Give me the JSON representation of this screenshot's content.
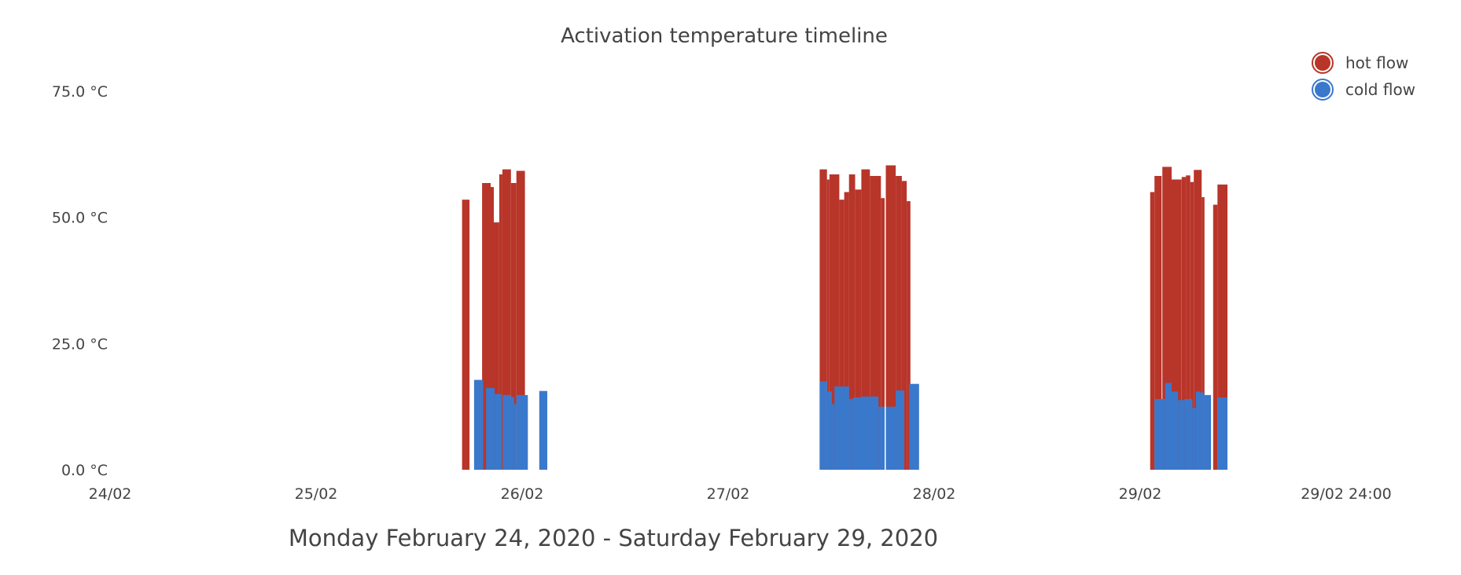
{
  "chart_data": {
    "type": "bar",
    "title": "Activation temperature timeline",
    "xlabel": "Monday February 24, 2020 - Saturday February 29, 2020",
    "ylabel": "",
    "ylim": [
      0,
      75
    ],
    "xlim": [
      "2020-02-24",
      "2020-03-01"
    ],
    "y_ticks": [
      "0.0 °C",
      "25.0 °C",
      "50.0 °C",
      "75.0 °C"
    ],
    "y_tick_values": [
      0,
      25,
      50,
      75
    ],
    "x_ticks": [
      "24/02",
      "25/02",
      "26/02",
      "27/02",
      "28/02",
      "29/02",
      "29/02 24:00"
    ],
    "x_tick_values": [
      "2020-02-24 00:00",
      "2020-02-25 00:00",
      "2020-02-26 00:00",
      "2020-02-27 00:00",
      "2020-02-28 00:00",
      "2020-02-29 00:00",
      "2020-03-01 00:00"
    ],
    "grid": false,
    "legend": "top-right",
    "series": [
      {
        "name": "hot flow",
        "color": "#b8352a",
        "bars": [
          {
            "start": "2020-02-25 17:00",
            "end": "2020-02-25 17:52",
            "value": 53.5
          },
          {
            "start": "2020-02-25 19:20",
            "end": "2020-02-25 20:20",
            "value": 56.8
          },
          {
            "start": "2020-02-25 20:20",
            "end": "2020-02-25 20:42",
            "value": 56.0
          },
          {
            "start": "2020-02-25 20:42",
            "end": "2020-02-25 21:20",
            "value": 49.0
          },
          {
            "start": "2020-02-25 21:20",
            "end": "2020-02-25 21:42",
            "value": 58.5
          },
          {
            "start": "2020-02-25 21:42",
            "end": "2020-02-25 22:42",
            "value": 59.5
          },
          {
            "start": "2020-02-25 22:42",
            "end": "2020-02-25 23:20",
            "value": 56.8
          },
          {
            "start": "2020-02-25 23:20",
            "end": "2020-02-26 00:20",
            "value": 59.2
          },
          {
            "start": "2020-02-27 10:40",
            "end": "2020-02-27 11:31",
            "value": 59.5
          },
          {
            "start": "2020-02-27 11:31",
            "end": "2020-02-27 11:48",
            "value": 57.5
          },
          {
            "start": "2020-02-27 11:48",
            "end": "2020-02-27 12:57",
            "value": 58.5
          },
          {
            "start": "2020-02-27 12:57",
            "end": "2020-02-27 13:31",
            "value": 53.5
          },
          {
            "start": "2020-02-27 13:31",
            "end": "2020-02-27 14:05",
            "value": 55.0
          },
          {
            "start": "2020-02-27 14:05",
            "end": "2020-02-27 14:48",
            "value": 58.5
          },
          {
            "start": "2020-02-27 14:48",
            "end": "2020-02-27 15:31",
            "value": 55.5
          },
          {
            "start": "2020-02-27 15:31",
            "end": "2020-02-27 16:31",
            "value": 59.5
          },
          {
            "start": "2020-02-27 16:31",
            "end": "2020-02-27 17:48",
            "value": 58.2
          },
          {
            "start": "2020-02-27 17:48",
            "end": "2020-02-27 18:14",
            "value": 53.8
          },
          {
            "start": "2020-02-27 18:22",
            "end": "2020-02-27 19:31",
            "value": 60.3
          },
          {
            "start": "2020-02-27 19:31",
            "end": "2020-02-27 20:14",
            "value": 58.2
          },
          {
            "start": "2020-02-27 20:14",
            "end": "2020-02-27 20:48",
            "value": 57.2
          },
          {
            "start": "2020-02-27 20:48",
            "end": "2020-02-27 21:14",
            "value": 53.2
          },
          {
            "start": "2020-02-29 01:10",
            "end": "2020-02-29 01:40",
            "value": 55.0
          },
          {
            "start": "2020-02-29 01:40",
            "end": "2020-02-29 02:30",
            "value": 58.2
          },
          {
            "start": "2020-02-29 02:35",
            "end": "2020-02-29 03:40",
            "value": 60.0
          },
          {
            "start": "2020-02-29 03:40",
            "end": "2020-02-29 04:50",
            "value": 57.5
          },
          {
            "start": "2020-02-29 04:50",
            "end": "2020-02-29 05:20",
            "value": 58.0
          },
          {
            "start": "2020-02-29 05:20",
            "end": "2020-02-29 05:50",
            "value": 58.3
          },
          {
            "start": "2020-02-29 05:50",
            "end": "2020-02-29 06:15",
            "value": 57.0
          },
          {
            "start": "2020-02-29 06:15",
            "end": "2020-02-29 07:10",
            "value": 59.4
          },
          {
            "start": "2020-02-29 07:10",
            "end": "2020-02-29 07:30",
            "value": 54.0
          },
          {
            "start": "2020-02-29 08:30",
            "end": "2020-02-29 09:00",
            "value": 52.5
          },
          {
            "start": "2020-02-29 09:00",
            "end": "2020-02-29 10:10",
            "value": 56.5
          }
        ]
      },
      {
        "name": "cold flow",
        "color": "#3a78cc",
        "bars": [
          {
            "start": "2020-02-25 18:24",
            "end": "2020-02-25 19:28",
            "value": 17.8
          },
          {
            "start": "2020-02-25 19:48",
            "end": "2020-02-25 20:48",
            "value": 16.2
          },
          {
            "start": "2020-02-25 20:48",
            "end": "2020-02-25 21:36",
            "value": 15.0
          },
          {
            "start": "2020-02-25 21:44",
            "end": "2020-02-25 22:40",
            "value": 14.8
          },
          {
            "start": "2020-02-25 22:40",
            "end": "2020-02-25 23:04",
            "value": 14.4
          },
          {
            "start": "2020-02-25 23:04",
            "end": "2020-02-25 23:20",
            "value": 13.0
          },
          {
            "start": "2020-02-25 23:20",
            "end": "2020-02-26 00:40",
            "value": 14.8
          },
          {
            "start": "2020-02-26 02:00",
            "end": "2020-02-26 02:56",
            "value": 15.6
          },
          {
            "start": "2020-02-27 10:40",
            "end": "2020-02-27 11:31",
            "value": 17.5
          },
          {
            "start": "2020-02-27 11:31",
            "end": "2020-02-27 12:05",
            "value": 15.5
          },
          {
            "start": "2020-02-27 12:05",
            "end": "2020-02-27 12:23",
            "value": 13.0
          },
          {
            "start": "2020-02-27 12:23",
            "end": "2020-02-27 14:05",
            "value": 16.5
          },
          {
            "start": "2020-02-27 14:05",
            "end": "2020-02-27 14:31",
            "value": 14.0
          },
          {
            "start": "2020-02-27 14:31",
            "end": "2020-02-27 15:31",
            "value": 14.3
          },
          {
            "start": "2020-02-27 15:31",
            "end": "2020-02-27 17:31",
            "value": 14.5
          },
          {
            "start": "2020-02-27 17:31",
            "end": "2020-02-27 18:14",
            "value": 12.5
          },
          {
            "start": "2020-02-27 18:22",
            "end": "2020-02-27 19:31",
            "value": 12.5
          },
          {
            "start": "2020-02-27 19:31",
            "end": "2020-02-27 20:31",
            "value": 15.7
          },
          {
            "start": "2020-02-27 21:05",
            "end": "2020-02-27 22:14",
            "value": 17.0
          },
          {
            "start": "2020-02-29 01:40",
            "end": "2020-02-29 02:55",
            "value": 14.0
          },
          {
            "start": "2020-02-29 02:55",
            "end": "2020-02-29 03:40",
            "value": 17.2
          },
          {
            "start": "2020-02-29 03:40",
            "end": "2020-02-29 04:25",
            "value": 15.5
          },
          {
            "start": "2020-02-29 04:25",
            "end": "2020-02-29 05:10",
            "value": 13.8
          },
          {
            "start": "2020-02-29 05:10",
            "end": "2020-02-29 06:05",
            "value": 14.0
          },
          {
            "start": "2020-02-29 06:05",
            "end": "2020-02-29 06:30",
            "value": 12.2
          },
          {
            "start": "2020-02-29 06:30",
            "end": "2020-02-29 07:00",
            "value": 15.5
          },
          {
            "start": "2020-02-29 07:00",
            "end": "2020-02-29 07:30",
            "value": 15.3
          },
          {
            "start": "2020-02-29 07:30",
            "end": "2020-02-29 08:15",
            "value": 14.8
          },
          {
            "start": "2020-02-29 09:00",
            "end": "2020-02-29 10:10",
            "value": 14.3
          }
        ]
      }
    ]
  }
}
